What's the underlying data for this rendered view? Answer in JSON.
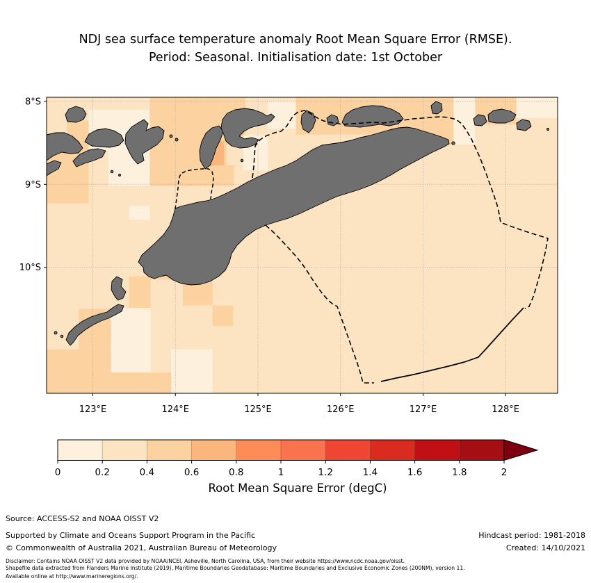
{
  "title": {
    "line1": "NDJ sea surface temperature anomaly Root Mean Square Error (RMSE).",
    "line2": "Period: Seasonal. Initialisation date: 1st October"
  },
  "footer": {
    "source": "Source: ACCESS-S2 and NOAA OISST V2",
    "supported_by": "Supported by Climate and Oceans Support Program in the Pacific",
    "copyright": "© Commonwealth of Australia 2021, Australian Bureau of Meteorology",
    "hindcast_period": "Hindcast period: 1981-2018",
    "created": "Created: 14/10/2021",
    "disclaimer": [
      "Disclaimer: Contains NOAA OISST V2 data provided by NOAA/NCEI, Asheville, North Carolina, USA, from their website https://www.ncdc.noaa.gov/oisst.",
      "Shapefile data extracted from Flanders Marine Institute (2019), Maritime Boundaries Geodatabase: Maritime Boundaries and Exclusive Economic Zones (200NM), version 11.",
      "Available online at http://www.marineregions.org/."
    ]
  },
  "chart_data": {
    "type": "heatmap",
    "subtype": "geographic RMSE map with land overlay and maritime boundaries",
    "title": "NDJ sea surface temperature anomaly Root Mean Square Error (RMSE). Period: Seasonal. Initialisation date: 1st October",
    "x_axis": {
      "tick_labels": [
        "123°E",
        "124°E",
        "125°E",
        "126°E",
        "127°E",
        "128°E"
      ],
      "tick_values": [
        123,
        124,
        125,
        126,
        127,
        128
      ],
      "range": [
        122.44,
        128.63
      ]
    },
    "y_axis": {
      "tick_labels": [
        "8°S",
        "9°S",
        "10°S"
      ],
      "tick_values": [
        8,
        9,
        10
      ],
      "range": [
        7.95,
        11.52
      ]
    },
    "grid": "dotted light grey at labelled ticks",
    "land_color": "#6f6f6f",
    "coast_color": "#000000",
    "boundary_styles": {
      "eez": "black dashed",
      "treaty_segment": "black solid"
    },
    "colorbar": {
      "label": "Root Mean Square Error (degC)",
      "tick_labels": [
        "0",
        "0.2",
        "0.4",
        "0.6",
        "0.8",
        "1",
        "1.2",
        "1.4",
        "1.6",
        "1.8",
        "2"
      ],
      "bin_edges": [
        0,
        0.2,
        0.4,
        0.6,
        0.8,
        1.0,
        1.2,
        1.4,
        1.6,
        1.8,
        2.0
      ],
      "bin_colors": [
        "#fdf0dc",
        "#fce4c3",
        "#fbd2a0",
        "#fbb67e",
        "#fc8d59",
        "#f9734e",
        "#ef4533",
        "#d92b20",
        "#c01016",
        "#a50e13"
      ],
      "over_color": "#7d000e",
      "orientation": "horizontal",
      "extend": "max"
    },
    "base_bin": 1,
    "base_value_range": "0.2-0.4",
    "cells": [
      {
        "lon": [
          122.44,
          122.95
        ],
        "lat_s": [
          8.48,
          9.23
        ],
        "bin": 2
      },
      {
        "lon": [
          122.69,
          122.95
        ],
        "lat_s": [
          8.23,
          8.48
        ],
        "bin": 2
      },
      {
        "lon": [
          122.95,
          123.69
        ],
        "lat_s": [
          8.1,
          8.6
        ],
        "bin": 0
      },
      {
        "lon": [
          123.19,
          123.69
        ],
        "lat_s": [
          8.6,
          9.02
        ],
        "bin": 0
      },
      {
        "lon": [
          123.69,
          124.85
        ],
        "lat_s": [
          7.95,
          8.52
        ],
        "bin": 2
      },
      {
        "lon": [
          123.69,
          124.62
        ],
        "lat_s": [
          8.52,
          9.02
        ],
        "bin": 2
      },
      {
        "lon": [
          124.33,
          124.59
        ],
        "lat_s": [
          8.48,
          8.78
        ],
        "bin": 3
      },
      {
        "lon": [
          125.12,
          125.46
        ],
        "lat_s": [
          8.0,
          8.33
        ],
        "bin": 0
      },
      {
        "lon": [
          124.82,
          125.12
        ],
        "lat_s": [
          8.41,
          8.83
        ],
        "bin": 0
      },
      {
        "lon": [
          124.45,
          124.71
        ],
        "lat_s": [
          8.77,
          9.02
        ],
        "bin": 2
      },
      {
        "lon": [
          125.46,
          126.95
        ],
        "lat_s": [
          7.95,
          8.4
        ],
        "bin": 2
      },
      {
        "lon": [
          126.95,
          127.37
        ],
        "lat_s": [
          7.95,
          8.52
        ],
        "bin": 2
      },
      {
        "lon": [
          127.37,
          127.63
        ],
        "lat_s": [
          7.95,
          8.52
        ],
        "bin": 0
      },
      {
        "lon": [
          127.63,
          128.13
        ],
        "lat_s": [
          7.95,
          8.28
        ],
        "bin": 2
      },
      {
        "lon": [
          128.13,
          128.63
        ],
        "lat_s": [
          7.95,
          8.2
        ],
        "bin": 0
      },
      {
        "lon": [
          123.44,
          123.69
        ],
        "lat_s": [
          9.26,
          9.43
        ],
        "bin": 0
      },
      {
        "lon": [
          123.7,
          124.09
        ],
        "lat_s": [
          9.82,
          10.15
        ],
        "bin": 2
      },
      {
        "lon": [
          124.09,
          124.45
        ],
        "lat_s": [
          10.07,
          10.46
        ],
        "bin": 2
      },
      {
        "lon": [
          124.45,
          124.7
        ],
        "lat_s": [
          10.46,
          10.71
        ],
        "bin": 2
      },
      {
        "lon": [
          123.44,
          123.7
        ],
        "lat_s": [
          10.11,
          10.5
        ],
        "bin": 2
      },
      {
        "lon": [
          122.83,
          123.22
        ],
        "lat_s": [
          10.5,
          10.99
        ],
        "bin": 2
      },
      {
        "lon": [
          122.44,
          123.61
        ],
        "lat_s": [
          10.99,
          11.52
        ],
        "bin": 2
      },
      {
        "lon": [
          123.61,
          123.95
        ],
        "lat_s": [
          11.27,
          11.52
        ],
        "bin": 2
      },
      {
        "lon": [
          123.22,
          123.7
        ],
        "lat_s": [
          10.49,
          11.27
        ],
        "bin": 0
      },
      {
        "lon": [
          123.95,
          124.45
        ],
        "lat_s": [
          10.99,
          11.52
        ],
        "bin": 0
      }
    ]
  }
}
